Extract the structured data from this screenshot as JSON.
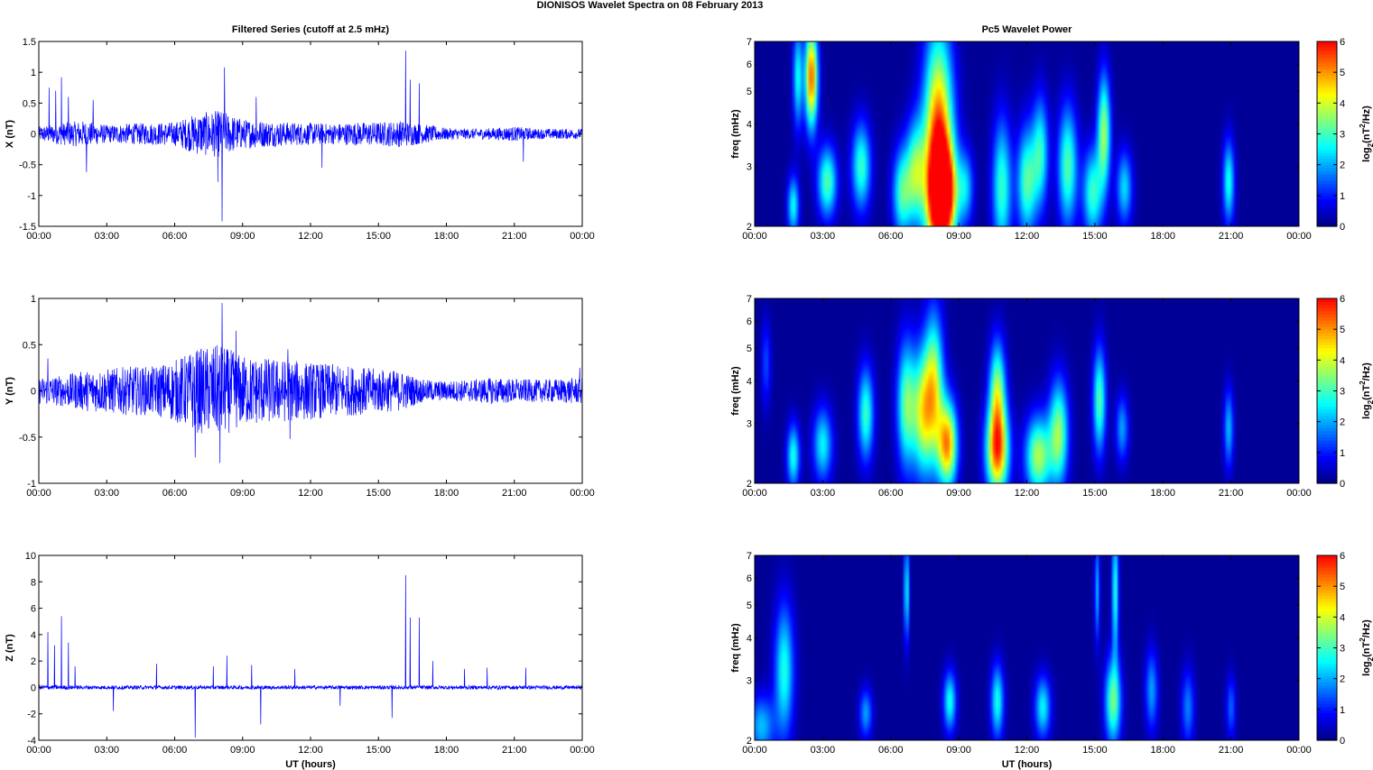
{
  "figure_title": "DIONISOS Wavelet Spectra on 08 February  2013",
  "left_title": "Filtered Series (cutoff at 2.5 mHz)",
  "right_title": "Pc5 Wavelet Power",
  "time_ticks": [
    "00:00",
    "03:00",
    "06:00",
    "09:00",
    "12:00",
    "15:00",
    "18:00",
    "21:00",
    "00:00"
  ],
  "xlabel": "UT (hours)",
  "freq_ticks": [
    "2",
    "3",
    "4",
    "5",
    "6",
    "7"
  ],
  "freq_label": "freq (mHz)",
  "colorbar_label_base": "log",
  "colorbar_label_sub": "2",
  "colorbar_label_open": "(nT",
  "colorbar_label_sup": "2",
  "colorbar_label_close": "/Hz)",
  "colorbar_ticks": [
    "0",
    "1",
    "2",
    "3",
    "4",
    "5",
    "6"
  ],
  "colors": {
    "series": "#0000ff",
    "colormap": "jet"
  },
  "chart_data": [
    {
      "type": "line",
      "title": "Filtered Series (cutoff at 2.5 mHz)",
      "ylabel": "X (nT)",
      "xlabel": "",
      "xlim": [
        0,
        24
      ],
      "ylim": [
        -1.5,
        1.5
      ],
      "yticks": [
        "1.5",
        "1",
        "0.5",
        "0",
        "-0.5",
        "-1",
        "-1.5"
      ],
      "noise_amplitude": [
        [
          0,
          0.1
        ],
        [
          1,
          0.15
        ],
        [
          2,
          0.18
        ],
        [
          3,
          0.12
        ],
        [
          4,
          0.14
        ],
        [
          5,
          0.15
        ],
        [
          6,
          0.16
        ],
        [
          7,
          0.28
        ],
        [
          8,
          0.32
        ],
        [
          9,
          0.2
        ],
        [
          10,
          0.18
        ],
        [
          11,
          0.16
        ],
        [
          12,
          0.15
        ],
        [
          13,
          0.14
        ],
        [
          14,
          0.16
        ],
        [
          15,
          0.16
        ],
        [
          16,
          0.18
        ],
        [
          17,
          0.13
        ],
        [
          18,
          0.08
        ],
        [
          19,
          0.07
        ],
        [
          20,
          0.08
        ],
        [
          21,
          0.1
        ],
        [
          22,
          0.07
        ],
        [
          24,
          0.07
        ]
      ],
      "peaks": [
        [
          0.45,
          0.75
        ],
        [
          0.75,
          0.7
        ],
        [
          1.0,
          0.92
        ],
        [
          1.3,
          0.6
        ],
        [
          2.4,
          0.55
        ],
        [
          8.2,
          1.08
        ],
        [
          8.1,
          -1.42
        ],
        [
          7.9,
          -0.78
        ],
        [
          16.2,
          1.35
        ],
        [
          16.4,
          0.88
        ],
        [
          16.8,
          0.82
        ],
        [
          2.1,
          -0.62
        ],
        [
          21.4,
          -0.45
        ],
        [
          9.6,
          0.6
        ],
        [
          12.5,
          -0.55
        ]
      ]
    },
    {
      "type": "line",
      "title": "",
      "ylabel": "Y (nT)",
      "xlabel": "",
      "xlim": [
        0,
        24
      ],
      "ylim": [
        -1,
        1
      ],
      "yticks": [
        "1",
        "0.5",
        "0",
        "-0.5",
        "-1"
      ],
      "noise_amplitude": [
        [
          0,
          0.12
        ],
        [
          1,
          0.14
        ],
        [
          2,
          0.18
        ],
        [
          3,
          0.2
        ],
        [
          4,
          0.22
        ],
        [
          5,
          0.22
        ],
        [
          6,
          0.28
        ],
        [
          7,
          0.38
        ],
        [
          8,
          0.42
        ],
        [
          9,
          0.32
        ],
        [
          10,
          0.3
        ],
        [
          11,
          0.28
        ],
        [
          12,
          0.26
        ],
        [
          13,
          0.24
        ],
        [
          14,
          0.22
        ],
        [
          15,
          0.2
        ],
        [
          16,
          0.18
        ],
        [
          17,
          0.1
        ],
        [
          18,
          0.09
        ],
        [
          19,
          0.1
        ],
        [
          20,
          0.12
        ],
        [
          21,
          0.11
        ],
        [
          22,
          0.1
        ],
        [
          24,
          0.12
        ]
      ],
      "peaks": [
        [
          8.1,
          0.95
        ],
        [
          8.7,
          0.65
        ],
        [
          8.0,
          -0.78
        ],
        [
          6.9,
          -0.72
        ],
        [
          11.0,
          0.45
        ],
        [
          11.1,
          -0.52
        ],
        [
          0.4,
          0.35
        ],
        [
          23.9,
          0.25
        ]
      ]
    },
    {
      "type": "line",
      "title": "",
      "ylabel": "Z (nT)",
      "xlabel": "UT (hours)",
      "xlim": [
        0,
        24
      ],
      "ylim": [
        -4,
        10
      ],
      "yticks": [
        "10",
        "8",
        "6",
        "4",
        "2",
        "0",
        "-2",
        "-4"
      ],
      "noise_amplitude": [
        [
          0,
          0.15
        ],
        [
          2,
          0.12
        ],
        [
          24,
          0.12
        ]
      ],
      "peaks": [
        [
          0.4,
          4.2
        ],
        [
          0.7,
          3.2
        ],
        [
          1.0,
          5.4
        ],
        [
          1.3,
          3.4
        ],
        [
          1.6,
          1.6
        ],
        [
          5.2,
          1.8
        ],
        [
          6.9,
          -3.8
        ],
        [
          7.7,
          1.6
        ],
        [
          8.3,
          2.4
        ],
        [
          9.4,
          1.7
        ],
        [
          9.8,
          -2.8
        ],
        [
          11.3,
          1.4
        ],
        [
          15.6,
          -2.3
        ],
        [
          16.2,
          8.5
        ],
        [
          16.4,
          5.3
        ],
        [
          16.8,
          5.3
        ],
        [
          17.4,
          2.0
        ],
        [
          18.8,
          1.4
        ],
        [
          19.8,
          1.5
        ],
        [
          21.5,
          1.5
        ],
        [
          3.3,
          -1.8
        ],
        [
          13.3,
          -1.4
        ]
      ]
    },
    {
      "type": "heatmap",
      "title": "Pc5 Wavelet Power",
      "ylabel": "freq (mHz)",
      "xlabel": "",
      "xlim": [
        0,
        24
      ],
      "ylim": [
        2,
        7
      ],
      "y_scale": "log",
      "clim": [
        0,
        6
      ],
      "blobs": [
        [
          1.7,
          2.3,
          0.18,
          0.35,
          2.5
        ],
        [
          2.5,
          5.5,
          0.2,
          1.5,
          5.2
        ],
        [
          3.2,
          2.7,
          0.3,
          0.5,
          3.0
        ],
        [
          4.7,
          3.0,
          0.3,
          0.7,
          2.8
        ],
        [
          6.5,
          2.5,
          0.3,
          0.6,
          2.8
        ],
        [
          7.1,
          2.9,
          0.3,
          0.8,
          3.0
        ],
        [
          8.1,
          3.2,
          0.45,
          2.4,
          6.0
        ],
        [
          8.3,
          2.5,
          0.4,
          0.6,
          5.5
        ],
        [
          10.9,
          2.6,
          0.3,
          1.0,
          2.8
        ],
        [
          12.0,
          2.7,
          0.3,
          0.8,
          3.0
        ],
        [
          12.6,
          3.3,
          0.25,
          1.0,
          2.6
        ],
        [
          13.8,
          3.0,
          0.3,
          1.0,
          3.0
        ],
        [
          14.9,
          2.5,
          0.3,
          0.6,
          2.8
        ],
        [
          15.4,
          3.8,
          0.2,
          1.2,
          3.5
        ],
        [
          16.3,
          2.6,
          0.25,
          0.5,
          2.2
        ],
        [
          20.9,
          2.7,
          0.18,
          0.6,
          2.6
        ],
        [
          1.9,
          5.5,
          0.15,
          1.5,
          2.5
        ],
        [
          9.3,
          2.6,
          0.25,
          0.5,
          2.0
        ]
      ]
    },
    {
      "type": "heatmap",
      "title": "",
      "ylabel": "freq (mHz)",
      "xlabel": "",
      "xlim": [
        0,
        24
      ],
      "ylim": [
        2,
        7
      ],
      "y_scale": "log",
      "clim": [
        0,
        6
      ],
      "blobs": [
        [
          1.7,
          2.4,
          0.2,
          0.4,
          2.6
        ],
        [
          3.0,
          2.6,
          0.3,
          0.5,
          2.4
        ],
        [
          4.9,
          3.2,
          0.25,
          0.8,
          2.8
        ],
        [
          6.7,
          3.4,
          0.3,
          1.2,
          3.2
        ],
        [
          7.4,
          3.2,
          0.3,
          1.1,
          3.4
        ],
        [
          7.9,
          3.8,
          0.3,
          1.6,
          3.8
        ],
        [
          8.5,
          2.6,
          0.3,
          0.6,
          4.8
        ],
        [
          10.7,
          2.5,
          0.35,
          0.6,
          5.2
        ],
        [
          10.7,
          3.8,
          0.25,
          1.0,
          3.2
        ],
        [
          12.5,
          2.4,
          0.4,
          0.5,
          3.6
        ],
        [
          13.4,
          2.8,
          0.3,
          0.8,
          3.4
        ],
        [
          15.2,
          3.5,
          0.2,
          1.0,
          3.0
        ],
        [
          16.2,
          2.9,
          0.2,
          0.5,
          1.8
        ],
        [
          20.9,
          2.9,
          0.15,
          0.6,
          2.0
        ],
        [
          0.5,
          4.5,
          0.15,
          1.0,
          1.2
        ]
      ]
    },
    {
      "type": "heatmap",
      "title": "",
      "ylabel": "freq (mHz)",
      "xlabel": "UT (hours)",
      "xlim": [
        0,
        24
      ],
      "ylim": [
        2,
        7
      ],
      "y_scale": "log",
      "clim": [
        0,
        6
      ],
      "blobs": [
        [
          0.3,
          2.2,
          0.4,
          0.35,
          2.0
        ],
        [
          1.3,
          3.2,
          0.3,
          1.2,
          2.6
        ],
        [
          4.9,
          2.4,
          0.2,
          0.3,
          1.8
        ],
        [
          8.6,
          2.6,
          0.2,
          0.4,
          2.6
        ],
        [
          10.7,
          2.6,
          0.2,
          0.5,
          2.6
        ],
        [
          12.7,
          2.5,
          0.25,
          0.4,
          2.4
        ],
        [
          15.8,
          2.6,
          0.25,
          0.6,
          3.2
        ],
        [
          15.9,
          5.5,
          0.1,
          2.0,
          2.8
        ],
        [
          6.7,
          5.5,
          0.08,
          1.5,
          2.6
        ],
        [
          17.5,
          2.8,
          0.2,
          0.6,
          1.8
        ],
        [
          19.1,
          2.5,
          0.2,
          0.5,
          1.6
        ],
        [
          21.0,
          2.5,
          0.15,
          0.4,
          1.4
        ],
        [
          15.1,
          5.5,
          0.08,
          1.5,
          2.0
        ]
      ]
    }
  ]
}
